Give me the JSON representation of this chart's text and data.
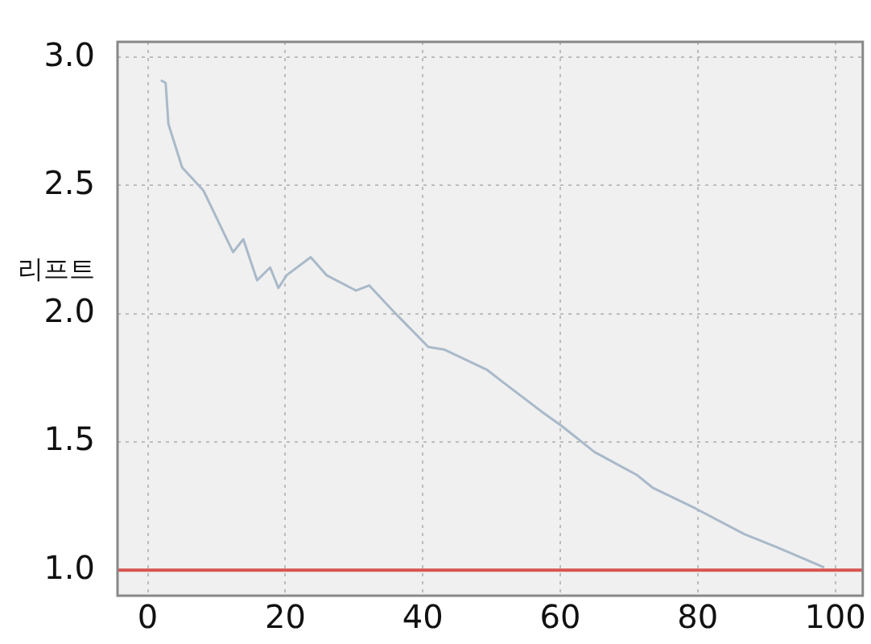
{
  "chart_data": {
    "type": "line",
    "ylabel": "리프트",
    "x": [
      1.9,
      2.6,
      3.0,
      5.0,
      8.1,
      12.4,
      13.9,
      15.9,
      17.8,
      19.0,
      20.2,
      23.7,
      26.0,
      30.3,
      32.2,
      35.7,
      40.8,
      43.1,
      49.4,
      51.3,
      57.2,
      60.3,
      65.0,
      71.2,
      73.5,
      79.7,
      86.8,
      91.4,
      98.4
    ],
    "series": [
      {
        "color": "#a9b9c9",
        "values": [
          2.91,
          2.9,
          2.74,
          2.57,
          2.48,
          2.24,
          2.29,
          2.13,
          2.18,
          2.1,
          2.15,
          2.22,
          2.15,
          2.09,
          2.11,
          2.01,
          1.87,
          1.86,
          1.78,
          1.74,
          1.62,
          1.56,
          1.46,
          1.37,
          1.32,
          1.24,
          1.14,
          1.09,
          1.01
        ]
      }
    ],
    "xlim": [
      -4.4,
      104
    ],
    "xticks": [
      0,
      20,
      40,
      60,
      80,
      100
    ],
    "ylim": [
      0.9,
      3.06
    ],
    "yticks": [
      {
        "value": 1,
        "label": "1.0"
      },
      {
        "value": 1.5,
        "label": "1.5"
      },
      {
        "value": 2,
        "label": "2.0"
      },
      {
        "value": 2.5,
        "label": "2.5"
      },
      {
        "value": 3,
        "label": "3.0"
      }
    ],
    "ref_lines": [
      {
        "axis": "y",
        "value": 1.0,
        "color": "#d9534f"
      }
    ],
    "grid": true,
    "marker": "none",
    "line_style": "solid",
    "legend": false
  }
}
